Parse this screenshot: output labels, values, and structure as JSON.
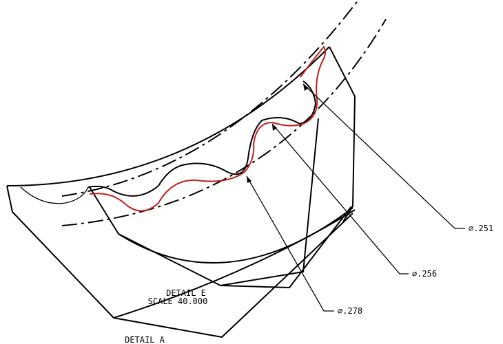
{
  "detail_e": {
    "title": "DETAIL E",
    "scale": "SCALE 40.000"
  },
  "detail_a": {
    "title": "DETAIL A"
  },
  "dimensions": [
    "⌀.251",
    "⌀.256",
    "⌀.278"
  ]
}
